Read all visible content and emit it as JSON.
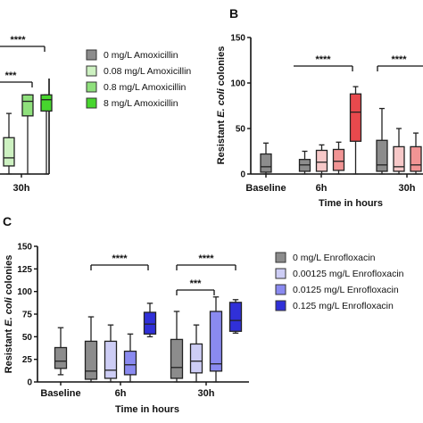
{
  "chart_data": [
    {
      "panel": "",
      "type": "box",
      "categories": [
        "30h"
      ],
      "legend": {
        "placement": "right",
        "entries": [
          "0 mg/L Amoxicillin",
          "0.08 mg/L Amoxicillin",
          "0.8 mg/L Amoxicillin",
          "8 mg/L Amoxicillin"
        ]
      },
      "colors": [
        "#8c8c8c",
        "#cdf1c1",
        "#8fe07c",
        "#47d62e"
      ],
      "series": [
        {
          "name": "0.08 mg/L Amoxicillin",
          "category": "30h",
          "min": 0,
          "q1": 10,
          "median": 20,
          "q3": 45,
          "max": 75
        },
        {
          "name": "0.8 mg/L Amoxicillin",
          "category": "30h",
          "min": 0,
          "q1": 72,
          "median": 90,
          "q3": 98,
          "max": 98
        },
        {
          "name": "8 mg/L Amoxicillin",
          "category": "30h",
          "min": 0,
          "q1": 78,
          "median": 92,
          "q3": 98,
          "max": 98
        }
      ],
      "significance": [
        "****",
        "***"
      ]
    },
    {
      "panel": "B",
      "type": "box",
      "ylabel_parts": [
        "Resistant ",
        "E. coli",
        " colonies"
      ],
      "xlabel": "Time in hours",
      "ylim": [
        0,
        150
      ],
      "yticks": [
        0,
        50,
        100,
        150
      ],
      "categories": [
        "Baseline",
        "6h",
        "30h"
      ],
      "colors": [
        "#8c8c8c",
        "#f7c8c8",
        "#f19494",
        "#e8494d"
      ],
      "series": [
        {
          "group": 0,
          "category": "Baseline",
          "min": 0,
          "q1": 2,
          "median": 8,
          "q3": 22,
          "max": 34
        },
        {
          "group": 0,
          "category": "6h",
          "min": 0,
          "q1": 3,
          "median": 10,
          "q3": 16,
          "max": 25
        },
        {
          "group": 1,
          "category": "6h",
          "min": 0,
          "q1": 3,
          "median": 13,
          "q3": 26,
          "max": 32
        },
        {
          "group": 2,
          "category": "6h",
          "min": 0,
          "q1": 4,
          "median": 14,
          "q3": 27,
          "max": 35
        },
        {
          "group": 3,
          "category": "6h",
          "min": 0,
          "q1": 36,
          "median": 68,
          "q3": 88,
          "max": 96
        },
        {
          "group": 0,
          "category": "30h",
          "min": 0,
          "q1": 3,
          "median": 10,
          "q3": 37,
          "max": 72
        },
        {
          "group": 1,
          "category": "30h",
          "min": 0,
          "q1": 3,
          "median": 8,
          "q3": 30,
          "max": 50
        },
        {
          "group": 2,
          "category": "30h",
          "min": 0,
          "q1": 3,
          "median": 10,
          "q3": 30,
          "max": 45
        }
      ],
      "significance": [
        "****",
        "****"
      ]
    },
    {
      "panel": "C",
      "type": "box",
      "ylabel_parts": [
        "Resistant ",
        "E. coli",
        " colonies"
      ],
      "xlabel": "Time in hours",
      "ylim": [
        0,
        150
      ],
      "yticks": [
        0,
        25,
        50,
        75,
        100,
        125,
        150
      ],
      "categories": [
        "Baseline",
        "6h",
        "30h"
      ],
      "legend": {
        "placement": "right",
        "entries": [
          "0 mg/L Enrofloxacin",
          "0.00125 mg/L Enrofloxacin",
          "0.0125 mg/L Enrofloxacin",
          "0.125 mg/L Enrofloxacin"
        ]
      },
      "colors": [
        "#8c8c8c",
        "#cdcdf5",
        "#8a8af0",
        "#3030d8"
      ],
      "series": [
        {
          "group": 0,
          "category": "Baseline",
          "min": 8,
          "q1": 15,
          "median": 23,
          "q3": 38,
          "max": 60
        },
        {
          "group": 0,
          "category": "6h",
          "min": 0,
          "q1": 3,
          "median": 12,
          "q3": 45,
          "max": 72
        },
        {
          "group": 1,
          "category": "6h",
          "min": 0,
          "q1": 4,
          "median": 13,
          "q3": 45,
          "max": 63
        },
        {
          "group": 2,
          "category": "6h",
          "min": 0,
          "q1": 8,
          "median": 19,
          "q3": 34,
          "max": 53
        },
        {
          "group": 3,
          "category": "6h",
          "min": 50,
          "q1": 53,
          "median": 64,
          "q3": 77,
          "max": 87
        },
        {
          "group": 0,
          "category": "30h",
          "min": 0,
          "q1": 4,
          "median": 16,
          "q3": 47,
          "max": 78
        },
        {
          "group": 1,
          "category": "30h",
          "min": 0,
          "q1": 10,
          "median": 23,
          "q3": 42,
          "max": 63
        },
        {
          "group": 2,
          "category": "30h",
          "min": 0,
          "q1": 12,
          "median": 20,
          "q3": 78,
          "max": 94
        },
        {
          "group": 3,
          "category": "30h",
          "min": 54,
          "q1": 56,
          "median": 68,
          "q3": 88,
          "max": 91
        }
      ],
      "significance": [
        "****",
        "****",
        "***"
      ]
    }
  ]
}
